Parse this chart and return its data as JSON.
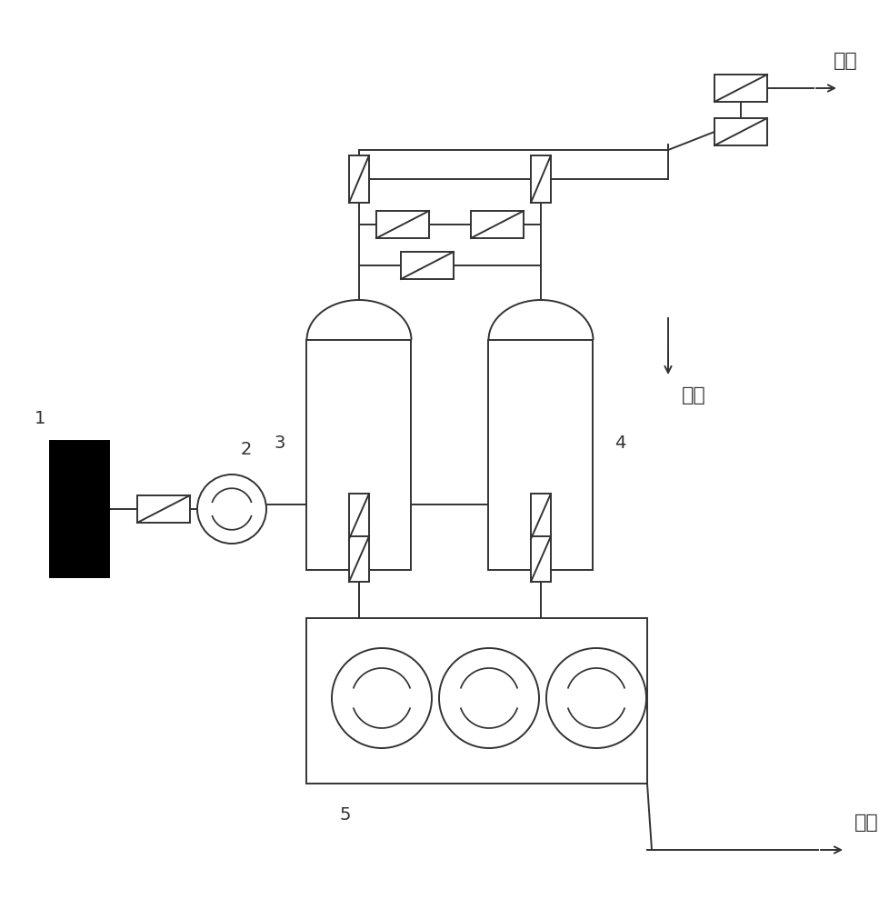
{
  "line_color": "#333333",
  "label_1": "1",
  "label_2": "2",
  "label_3": "3",
  "label_4": "4",
  "label_5": "5",
  "text_fangkong": "放空",
  "text_yonghu": "用户",
  "fontsize_label": 14,
  "fontsize_chinese": 16,
  "lw": 1.4
}
